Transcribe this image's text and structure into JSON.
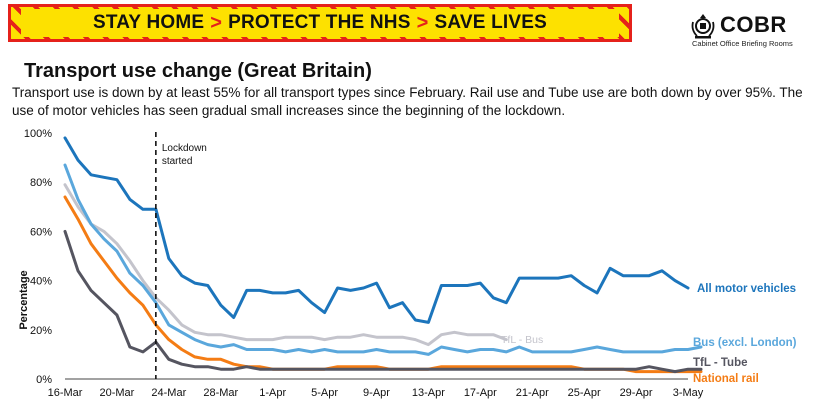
{
  "banner": {
    "part1": "STAY HOME",
    "part2": "PROTECT THE NHS",
    "part3": "SAVE LIVES",
    "separator": ">"
  },
  "logo": {
    "title": "COBR",
    "subtitle": "Cabinet Office Briefing Rooms"
  },
  "headline": "Transport use change (Great Britain)",
  "description": "Transport use is down by at least 55% for all transport types since February. Rail use and Tube use are both down by over 95%. The use of motor vehicles has seen gradual small increases since the beginning of the lockdown.",
  "chart_data": {
    "type": "line",
    "ylabel": "Percentage",
    "xlabel": "",
    "ylim": [
      0,
      100
    ],
    "yticks": [
      "0%",
      "20%",
      "40%",
      "60%",
      "80%",
      "100%"
    ],
    "x_tick_labels": [
      "16-Mar",
      "20-Mar",
      "24-Mar",
      "28-Mar",
      "1-Apr",
      "5-Apr",
      "9-Apr",
      "13-Apr",
      "17-Apr",
      "21-Apr",
      "25-Apr",
      "29-Apr",
      "3-May"
    ],
    "start_date": "16-Mar",
    "annotation": {
      "label_line1": "Lockdown",
      "label_line2": "started",
      "date": "23-Mar"
    },
    "colors": {
      "motor": "#1c75bc",
      "bus": "#5aa7dc",
      "tflbus": "#c4c4cc",
      "tube": "#555560",
      "rail": "#f47c14"
    },
    "series": [
      {
        "name": "All motor vehicles",
        "color": "#1c75bc",
        "values": [
          98,
          89,
          83,
          82,
          81,
          73,
          69,
          69,
          49,
          42,
          39,
          38,
          30,
          25,
          36,
          36,
          35,
          35,
          36,
          31,
          27,
          37,
          36,
          37,
          39,
          29,
          31,
          24,
          23,
          38,
          38,
          38,
          39,
          33,
          31,
          41,
          41,
          41,
          41,
          42,
          38,
          35,
          45,
          42,
          42,
          42,
          44,
          40,
          37
        ]
      },
      {
        "name": "Bus (excl. London)",
        "color": "#5aa7dc",
        "values": [
          87,
          73,
          63,
          57,
          52,
          43,
          38,
          31,
          22,
          19,
          16,
          14,
          13,
          14,
          12,
          12,
          12,
          11,
          12,
          11,
          12,
          11,
          11,
          11,
          12,
          11,
          11,
          11,
          10,
          13,
          12,
          11,
          12,
          12,
          11,
          13,
          11,
          11,
          11,
          11,
          12,
          13,
          12,
          11,
          11,
          11,
          11,
          12,
          12,
          13
        ]
      },
      {
        "name": "TfL - Bus",
        "color": "#c4c4cc",
        "values": [
          79,
          70,
          63,
          60,
          55,
          48,
          40,
          33,
          28,
          22,
          19,
          18,
          18,
          17,
          16,
          16,
          16,
          17,
          17,
          17,
          16,
          17,
          17,
          18,
          17,
          17,
          17,
          16,
          14,
          18,
          19,
          18,
          18,
          18,
          16
        ]
      },
      {
        "name": "TfL - Tube",
        "color": "#555560",
        "values": [
          60,
          44,
          36,
          31,
          26,
          13,
          11,
          15,
          8,
          6,
          5,
          5,
          4,
          4,
          5,
          4,
          4,
          4,
          4,
          4,
          4,
          4,
          4,
          4,
          4,
          4,
          4,
          4,
          4,
          4,
          4,
          4,
          4,
          4,
          4,
          4,
          4,
          4,
          4,
          4,
          4,
          4,
          4,
          4,
          4,
          5,
          4,
          3,
          4,
          4
        ]
      },
      {
        "name": "National rail",
        "color": "#f47c14",
        "values": [
          74,
          65,
          55,
          48,
          41,
          35,
          30,
          22,
          16,
          12,
          9,
          8,
          8,
          6,
          5,
          5,
          4,
          4,
          4,
          4,
          4,
          5,
          5,
          5,
          5,
          4,
          4,
          4,
          4,
          5,
          5,
          5,
          5,
          5,
          5,
          5,
          5,
          5,
          5,
          5,
          4,
          4,
          4,
          4,
          3,
          3,
          3,
          3,
          3,
          3
        ]
      }
    ]
  }
}
